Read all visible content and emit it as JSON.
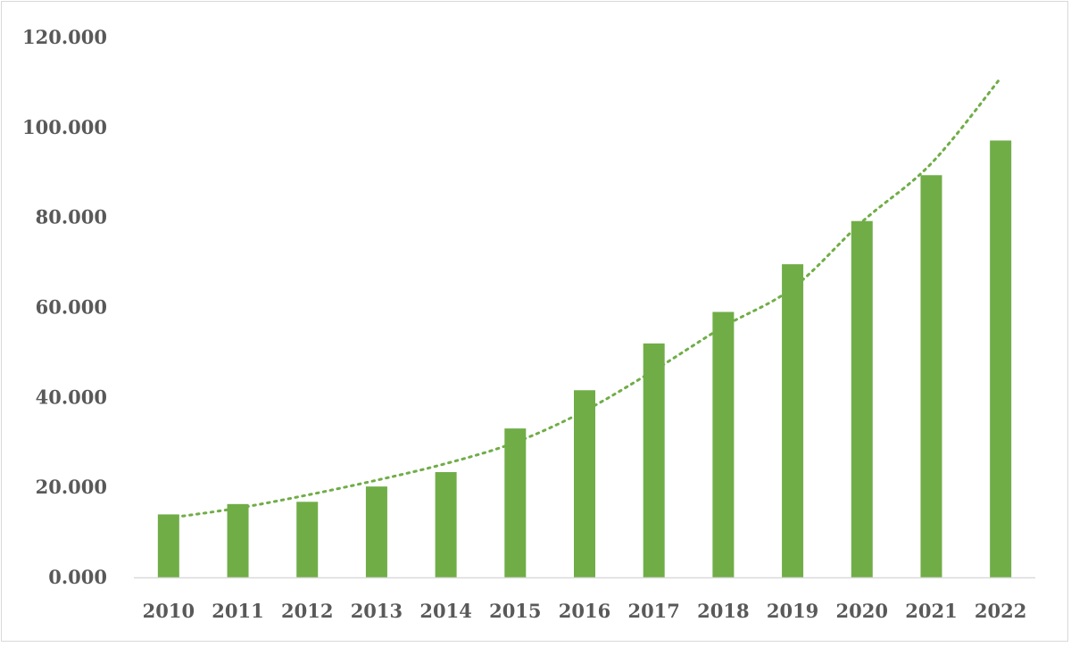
{
  "chart_data": {
    "type": "bar",
    "title": "",
    "xlabel": "",
    "ylabel": "",
    "categories": [
      "2010",
      "2011",
      "2012",
      "2013",
      "2014",
      "2015",
      "2016",
      "2017",
      "2018",
      "2019",
      "2020",
      "2021",
      "2022"
    ],
    "values": [
      14.0,
      16.3,
      16.8,
      20.2,
      23.4,
      33.1,
      41.6,
      52.0,
      59.0,
      69.6,
      79.2,
      89.4,
      97.1
    ],
    "ylim": [
      0,
      120
    ],
    "yticks": [
      "0.000",
      "20.000",
      "40.000",
      "60.000",
      "80.000",
      "100.000",
      "120.000"
    ],
    "yticks_values": [
      0,
      20,
      40,
      60,
      80,
      100,
      120
    ],
    "grid": false,
    "legend": "none",
    "trendline": {
      "type": "exponential",
      "style": "dotted",
      "values": [
        13.2,
        15.4,
        18.3,
        21.6,
        25.3,
        30.0,
        37.0,
        46.0,
        55.7,
        64.3,
        79.0,
        92.0,
        111.0
      ]
    },
    "colors": {
      "bar": "#70ad47",
      "trendline": "#70ad47",
      "axis": "#d9d9d9",
      "text": "#595959"
    }
  }
}
